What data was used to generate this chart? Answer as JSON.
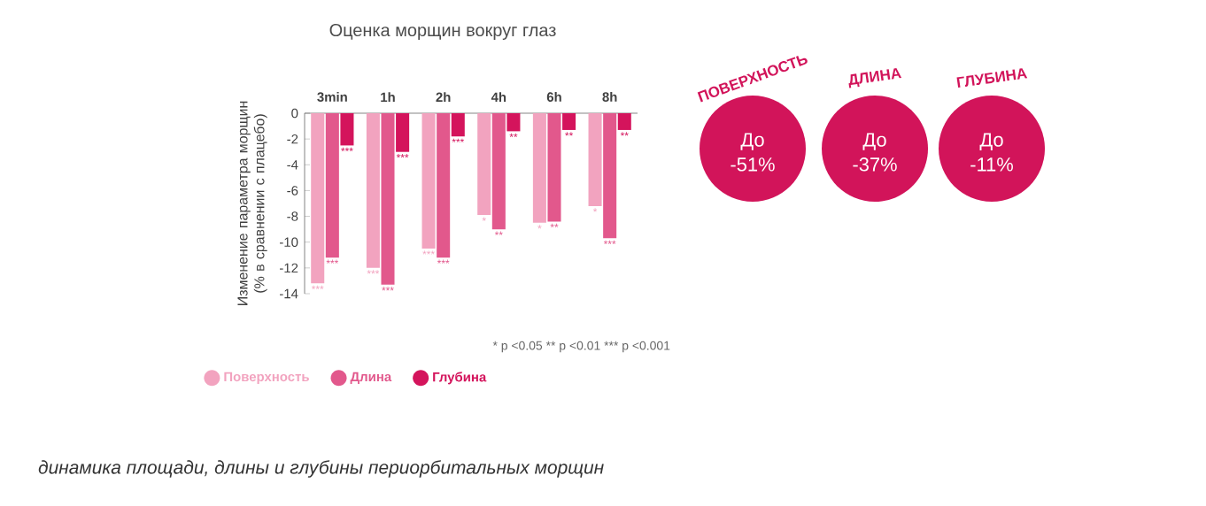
{
  "chart_data": [
    {
      "type": "bar",
      "title": "Оценка морщин вокруг глаз",
      "ylabel": "Изменение параметра морщин (% в сравнении с плацебо)",
      "categories": [
        "3min",
        "1h",
        "2h",
        "4h",
        "6h",
        "8h"
      ],
      "series": [
        {
          "name": "Поверхность",
          "color": "#f2a3bf",
          "values": [
            -13.2,
            -12.0,
            -10.5,
            -7.9,
            -8.5,
            -7.2
          ]
        },
        {
          "name": "Длина",
          "color": "#e2588c",
          "values": [
            -11.2,
            -13.3,
            -11.2,
            -9.0,
            -8.4,
            -9.7
          ]
        },
        {
          "name": "Глубина",
          "color": "#d4145c",
          "values": [
            -2.5,
            -3.0,
            -1.8,
            -1.4,
            -1.3,
            -1.3
          ]
        }
      ],
      "ylim": [
        -14,
        0
      ],
      "yticks": [
        0,
        -2,
        -4,
        -6,
        -8,
        -10,
        -12,
        -14
      ],
      "legend": "bottom",
      "annotations": [
        {
          "text": "***",
          "x": "3min",
          "y": -13.2
        },
        {
          "text": "***",
          "x": "3min",
          "y": -11.2
        },
        {
          "text": "***",
          "x": "3min",
          "y": -2.5
        },
        {
          "text": "***",
          "x": "1h",
          "y": -12.0
        },
        {
          "text": "***",
          "x": "1h",
          "y": -13.3
        },
        {
          "text": "***",
          "x": "1h",
          "y": -3.0
        },
        {
          "text": "***",
          "x": "2h",
          "y": -10.5
        },
        {
          "text": "***",
          "x": "2h",
          "y": -11.2
        },
        {
          "text": "***",
          "x": "2h",
          "y": -1.8
        },
        {
          "text": "*",
          "x": "4h",
          "y": -7.9
        },
        {
          "text": "**",
          "x": "4h",
          "y": -9.0
        },
        {
          "text": "**",
          "x": "4h",
          "y": -1.4
        },
        {
          "text": "*",
          "x": "6h",
          "y": -8.5
        },
        {
          "text": "**",
          "x": "6h",
          "y": -8.4
        },
        {
          "text": "**",
          "x": "6h",
          "y": -1.3
        },
        {
          "text": "*",
          "x": "8h",
          "y": -7.2
        },
        {
          "text": "***",
          "x": "8h",
          "y": -9.7
        },
        {
          "text": "**",
          "x": "8h",
          "y": -1.3
        },
        "* p <0.05   ** p <0.01   *** p <0.001",
        "динамика площади, длины и глубины периорбитальных морщин"
      ]
    },
    {
      "type": "other",
      "categories": [
        "ПОВЕРХНОСТЬ",
        "ДЛИНА",
        "ГЛУБИНА"
      ],
      "annotations": [
        "До -51%",
        "До -37%",
        "До -11%"
      ],
      "color": "#d2145a"
    }
  ]
}
